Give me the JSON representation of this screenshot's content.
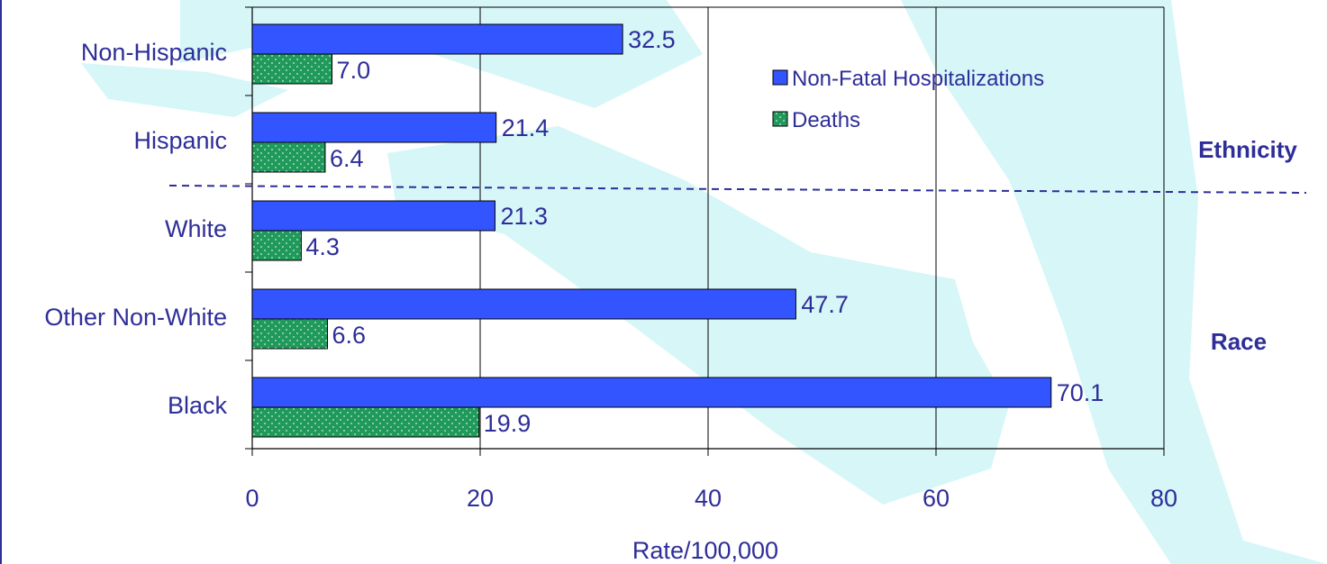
{
  "chart_data": {
    "type": "bar",
    "orientation": "horizontal",
    "categories": [
      "Non-Hispanic",
      "Hispanic",
      "White",
      "Other Non-White",
      "Black"
    ],
    "series": [
      {
        "name": "Non-Fatal Hospitalizations",
        "values": [
          32.5,
          21.4,
          21.3,
          47.7,
          70.1
        ],
        "color": "#3355ff"
      },
      {
        "name": "Deaths",
        "values": [
          7.0,
          6.4,
          4.3,
          6.6,
          19.9
        ],
        "color": "#1f9a5a"
      }
    ],
    "value_labels": {
      "hosp": [
        "32.5",
        "21.4",
        "21.3",
        "47.7",
        "70.1"
      ],
      "deaths": [
        "7.0",
        "6.4",
        "4.3",
        "6.6",
        "19.9"
      ]
    },
    "xlim": [
      0,
      80
    ],
    "xticks": [
      0,
      20,
      40,
      60,
      80
    ],
    "xlabel": "Rate/100,000",
    "group_labels": [
      "Ethnicity",
      "Race"
    ],
    "grid": "vertical",
    "legend_position": "top-right"
  },
  "colors": {
    "text": "#2e2e99",
    "background_map": "#d6f6f8",
    "plot_background": "#ffffff"
  }
}
